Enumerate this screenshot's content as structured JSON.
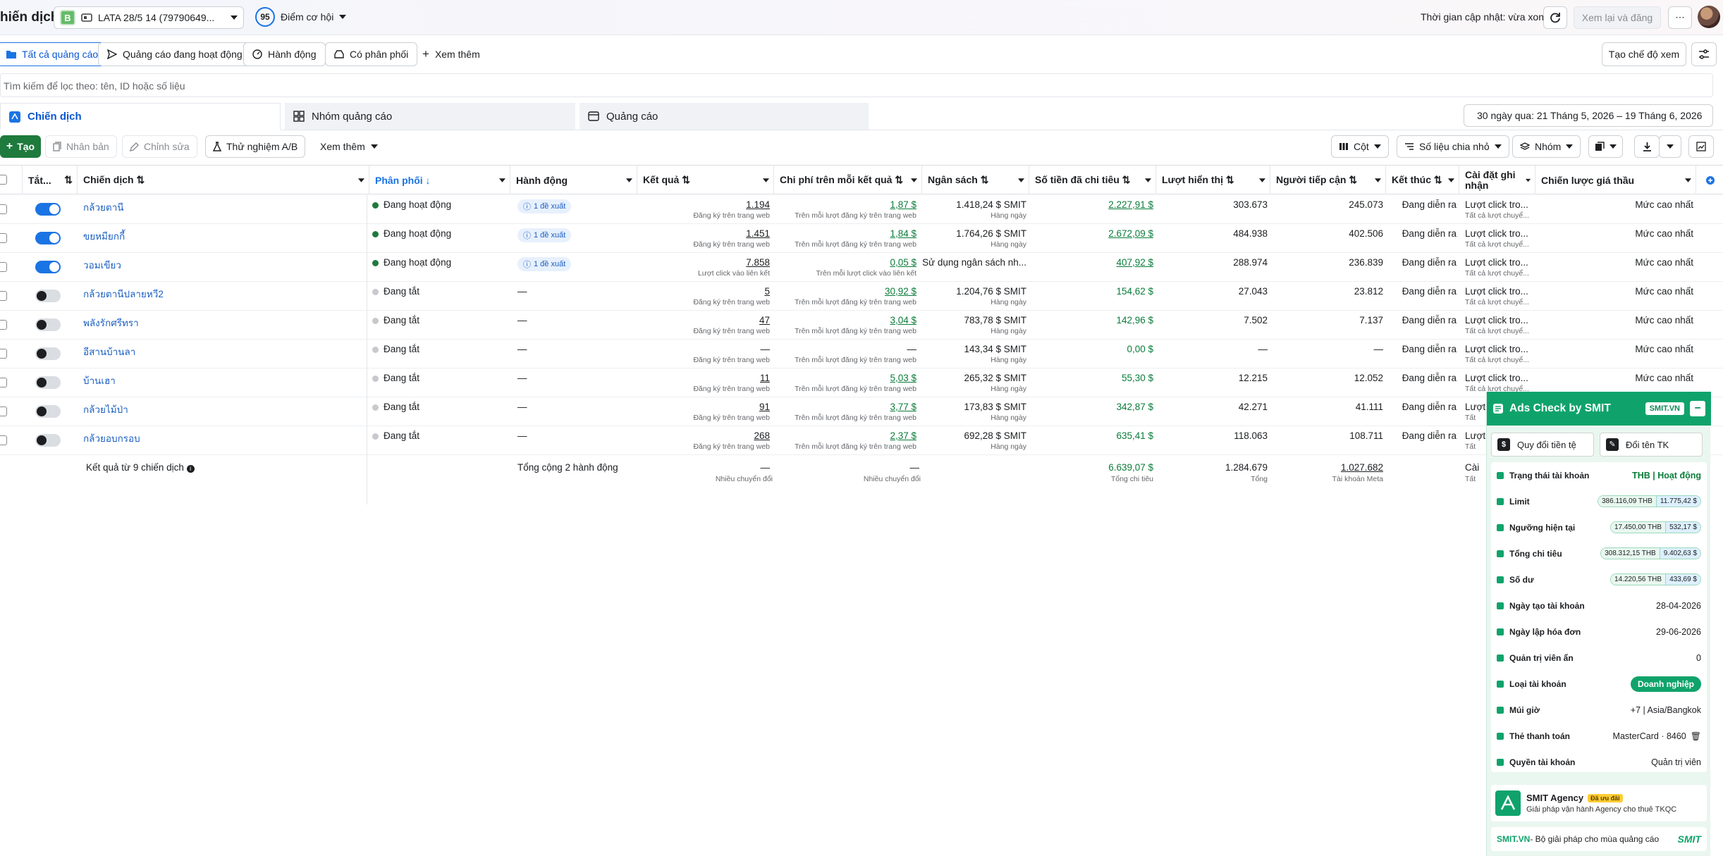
{
  "topbar": {
    "title": "hiến dịch",
    "account_badge": "B",
    "account_name": "LATA 28/5 14 (79790649...",
    "opportunity_score": "95",
    "opportunity_label": "Điểm cơ hội",
    "updated_text": "Thời gian cập nhật: vừa xong",
    "review_label": "Xem lại và đăng",
    "more": "⋯"
  },
  "filter_tabs": [
    {
      "label": "Tất cả quảng cáo"
    },
    {
      "label": "Quảng cáo đang hoạt động"
    },
    {
      "label": "Hành động"
    },
    {
      "label": "Có phân phối"
    },
    {
      "label": "Xem thêm"
    }
  ],
  "view_create_label": "Tạo chế độ xem",
  "search_placeholder": "Tìm kiếm để lọc theo: tên, ID hoặc số liệu",
  "level_tabs": {
    "campaign": "Chiến dịch",
    "adset": "Nhóm quảng cáo",
    "ad": "Quảng cáo"
  },
  "date_range": "30 ngày qua: 21 Tháng 5, 2026 – 19 Tháng 6, 2026",
  "toolbar": {
    "create": "Tạo",
    "duplicate": "Nhân bản",
    "edit": "Chỉnh sửa",
    "ab_test": "Thử nghiệm A/B",
    "more": "Xem thêm",
    "columns": "Cột",
    "breakdown": "Số liệu chia nhỏ",
    "group": "Nhóm"
  },
  "columns": [
    "Tắt...",
    "Chiến dịch",
    "Phân phối",
    "Hành động",
    "Kết quả",
    "Chi phí trên mỗi kết quả",
    "Ngân sách",
    "Số tiền đã chi tiêu",
    "Lượt hiển thị",
    "Người tiếp cận",
    "Kết thúc",
    "Cài đặt ghi nhận",
    "Chiến lược giá thầu"
  ],
  "rows": [
    {
      "on": true,
      "name": "กล้วยตานี",
      "status": "Đang hoạt động",
      "action": "1 đề xuất",
      "result": "1.194",
      "result_sub": "Đăng ký trên trang web",
      "cpr": "1,87 $",
      "cpr_sub": "Trên mỗi lượt đăng ký trên trang web",
      "budget": "1.418,24 $ SMIT",
      "budget_sub": "Hàng ngày",
      "spent": "2.227,91 $",
      "impr": "303.673",
      "reach": "245.073",
      "end": "Đang diễn ra",
      "attr": "Lượt click tro...",
      "attr_sub": "Tất cả lượt chuyể...",
      "bid": "Mức cao nhất"
    },
    {
      "on": true,
      "name": "ขยหมียกกี้",
      "status": "Đang hoạt động",
      "action": "1 đề xuất",
      "result": "1.451",
      "result_sub": "Đăng ký trên trang web",
      "cpr": "1,84 $",
      "cpr_sub": "Trên mỗi lượt đăng ký trên trang web",
      "budget": "1.764,26 $ SMIT",
      "budget_sub": "Hàng ngày",
      "spent": "2.672,09 $",
      "impr": "484.938",
      "reach": "402.506",
      "end": "Đang diễn ra",
      "attr": "Lượt click tro...",
      "attr_sub": "Tất cả lượt chuyể...",
      "bid": "Mức cao nhất"
    },
    {
      "on": true,
      "name": "วอมเขียว",
      "status": "Đang hoạt động",
      "action": "1 đề xuất",
      "result": "7.858",
      "result_sub": "Lượt click vào liên kết",
      "cpr": "0,05 $",
      "cpr_sub": "Trên mỗi lượt click vào liên kết",
      "budget": "Sử dụng ngân sách nh...",
      "budget_sub": "",
      "spent": "407,92 $",
      "impr": "288.974",
      "reach": "236.839",
      "end": "Đang diễn ra",
      "attr": "Lượt click tro...",
      "attr_sub": "Tất cả lượt chuyể...",
      "bid": "Mức cao nhất"
    },
    {
      "on": false,
      "name": "กล้วยตานีปลายหวี2",
      "status": "Đang tắt",
      "action": "—",
      "result": "5",
      "result_sub": "Đăng ký trên trang web",
      "cpr": "30,92 $",
      "cpr_sub": "Trên mỗi lượt đăng ký trên trang web",
      "budget": "1.204,76 $ SMIT",
      "budget_sub": "Hàng ngày",
      "spent": "154,62 $",
      "impr": "27.043",
      "reach": "23.812",
      "end": "Đang diễn ra",
      "attr": "Lượt click tro...",
      "attr_sub": "Tất cả lượt chuyể...",
      "bid": "Mức cao nhất"
    },
    {
      "on": false,
      "name": "พลังรักศรีทรา",
      "status": "Đang tắt",
      "action": "—",
      "result": "47",
      "result_sub": "Đăng ký trên trang web",
      "cpr": "3,04 $",
      "cpr_sub": "Trên mỗi lượt đăng ký trên trang web",
      "budget": "783,78 $ SMIT",
      "budget_sub": "Hàng ngày",
      "spent": "142,96 $",
      "impr": "7.502",
      "reach": "7.137",
      "end": "Đang diễn ra",
      "attr": "Lượt click tro...",
      "attr_sub": "Tất cả lượt chuyể...",
      "bid": "Mức cao nhất"
    },
    {
      "on": false,
      "name": "อีสานบ้านลา",
      "status": "Đang tắt",
      "action": "—",
      "result": "—",
      "result_sub": "Đăng ký trên trang web",
      "cpr": "—",
      "cpr_sub": "Trên mỗi lượt đăng ký trên trang web",
      "budget": "143,34 $ SMIT",
      "budget_sub": "Hàng ngày",
      "spent": "0,00 $",
      "impr": "—",
      "reach": "—",
      "end": "Đang diễn ra",
      "attr": "Lượt click tro...",
      "attr_sub": "Tất cả lượt chuyể...",
      "bid": "Mức cao nhất"
    },
    {
      "on": false,
      "name": "บ้านเฮา",
      "status": "Đang tắt",
      "action": "—",
      "result": "11",
      "result_sub": "Đăng ký trên trang web",
      "cpr": "5,03 $",
      "cpr_sub": "Trên mỗi lượt đăng ký trên trang web",
      "budget": "265,32 $ SMIT",
      "budget_sub": "Hàng ngày",
      "spent": "55,30 $",
      "impr": "12.215",
      "reach": "12.052",
      "end": "Đang diễn ra",
      "attr": "Lượt click tro...",
      "attr_sub": "Tất cả lượt chuyể...",
      "bid": "Mức cao nhất"
    },
    {
      "on": false,
      "name": "กล้วยไม้ป่า",
      "status": "Đang tắt",
      "action": "—",
      "result": "91",
      "result_sub": "Đăng ký trên trang web",
      "cpr": "3,77 $",
      "cpr_sub": "Trên mỗi lượt đăng ký trên trang web",
      "budget": "173,83 $ SMIT",
      "budget_sub": "Hàng ngày",
      "spent": "342,87 $",
      "impr": "42.271",
      "reach": "41.111",
      "end": "Đang diễn ra",
      "attr": "Lượt",
      "attr_sub": "Tất",
      "bid": ""
    },
    {
      "on": false,
      "name": "กล้วยอบกรอบ",
      "status": "Đang tắt",
      "action": "—",
      "result": "268",
      "result_sub": "Đăng ký trên trang web",
      "cpr": "2,37 $",
      "cpr_sub": "Trên mỗi lượt đăng ký trên trang web",
      "budget": "692,28 $ SMIT",
      "budget_sub": "Hàng ngày",
      "spent": "635,41 $",
      "impr": "118.063",
      "reach": "108.711",
      "end": "Đang diễn ra",
      "attr": "Lượt",
      "attr_sub": "Tất",
      "bid": ""
    }
  ],
  "totals": {
    "label": "Kết quả từ 9 chiến dịch",
    "actions": "Tổng cộng 2 hành động",
    "result": "—",
    "result_sub": "Nhiều chuyển đổi",
    "cpr": "—",
    "cpr_sub": "Nhiều chuyển đổi",
    "spent": "6.639,07 $",
    "spent_sub": "Tổng chi tiêu",
    "impr": "1.284.679",
    "impr_sub": "Tổng",
    "reach": "1.027.682",
    "reach_sub": "Tài khoản Meta",
    "attr": "Cài",
    "attr_sub": "Tất"
  },
  "smit": {
    "title": "Ads Check by SMIT",
    "site_pill": "SMIT.VN",
    "minimize": "−",
    "btn_currency": "Quy đổi tiền tệ",
    "btn_rename": "Đổi tên TK",
    "rows": [
      {
        "label": "Trạng thái tài khoản",
        "value": "THB | Hoạt động"
      },
      {
        "label": "Limit",
        "a": "386.116,09 THB",
        "b": "11.775,42 $"
      },
      {
        "label": "Ngưỡng hiện tại",
        "a": "17.450,00 THB",
        "b": "532,17 $"
      },
      {
        "label": "Tổng chi tiêu",
        "a": "308.312,15 THB",
        "b": "9.402,63 $"
      },
      {
        "label": "Số dư",
        "a": "14.220,56 THB",
        "b": "433,69 $"
      },
      {
        "label": "Ngày tạo tài khoản",
        "value": "28-04-2026"
      },
      {
        "label": "Ngày lập hóa đơn",
        "value": "29-06-2026"
      },
      {
        "label": "Quản trị viên ẩn",
        "value": "0"
      },
      {
        "label": "Loại tài khoản",
        "value": "Doanh nghiệp"
      },
      {
        "label": "Múi giờ",
        "value": "+7 | Asia/Bangkok"
      },
      {
        "label": "Thẻ thanh toán",
        "value": "MasterCard · 8460"
      },
      {
        "label": "Quyền tài khoản",
        "value": "Quản trị viên"
      }
    ],
    "agency_title": "SMIT Agency",
    "agency_tag": "Đã ưu đãi",
    "agency_desc": "Giải pháp vận hành Agency cho thuê TKQC",
    "footer_link": "SMIT.VN",
    "footer_text": " - Bộ giải pháp cho mùa quảng cáo",
    "footer_logo": "SMIT"
  },
  "colors": {
    "accent": "#1b74e4",
    "create_green": "#1e7a3d",
    "active_dot": "#1e7a3d",
    "smit_green": "#0fa36b",
    "money_green": "#0a7c3a"
  }
}
